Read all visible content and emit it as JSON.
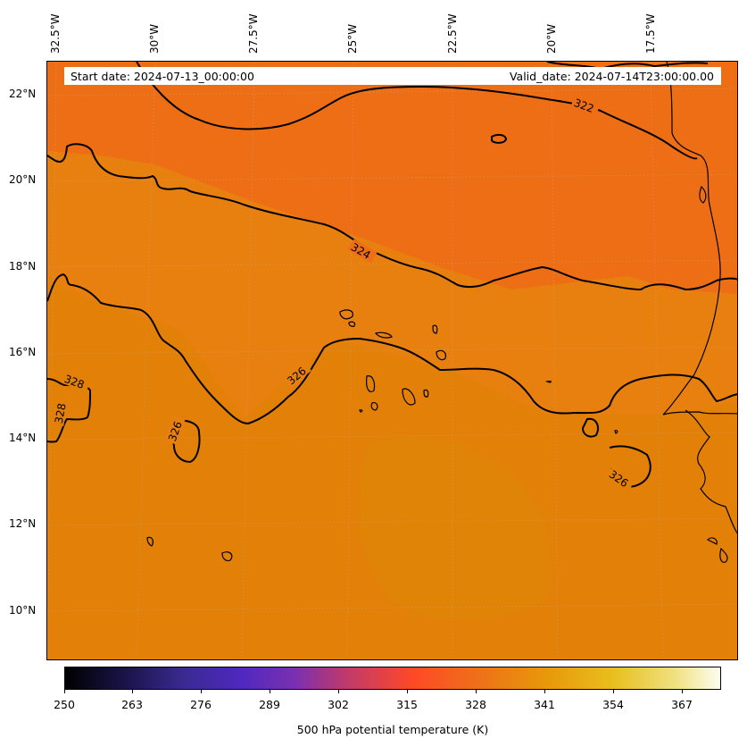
{
  "map": {
    "lon_labels": [
      "32.5°W",
      "30°W",
      "27.5°W",
      "25°W",
      "22.5°W",
      "20°W",
      "17.5°W"
    ],
    "lat_labels": [
      "22°N",
      "20°N",
      "18°N",
      "16°N",
      "14°N",
      "12°N",
      "10°N"
    ],
    "start_date": "Start date: 2024-07-13_00:00:00",
    "valid_date": "Valid_date: 2024-07-14T23:00:00.00",
    "contour_labels": [
      "322",
      "324",
      "326",
      "326",
      "326",
      "328",
      "328"
    ],
    "colors": {
      "warm_field": "#ee7014",
      "cool_field": "#e27f08",
      "contour": "#000000"
    }
  },
  "colorbar": {
    "ticks": [
      "250",
      "263",
      "276",
      "289",
      "302",
      "315",
      "328",
      "341",
      "354",
      "367"
    ],
    "title": "500 hPa potential temperature (K)"
  }
}
